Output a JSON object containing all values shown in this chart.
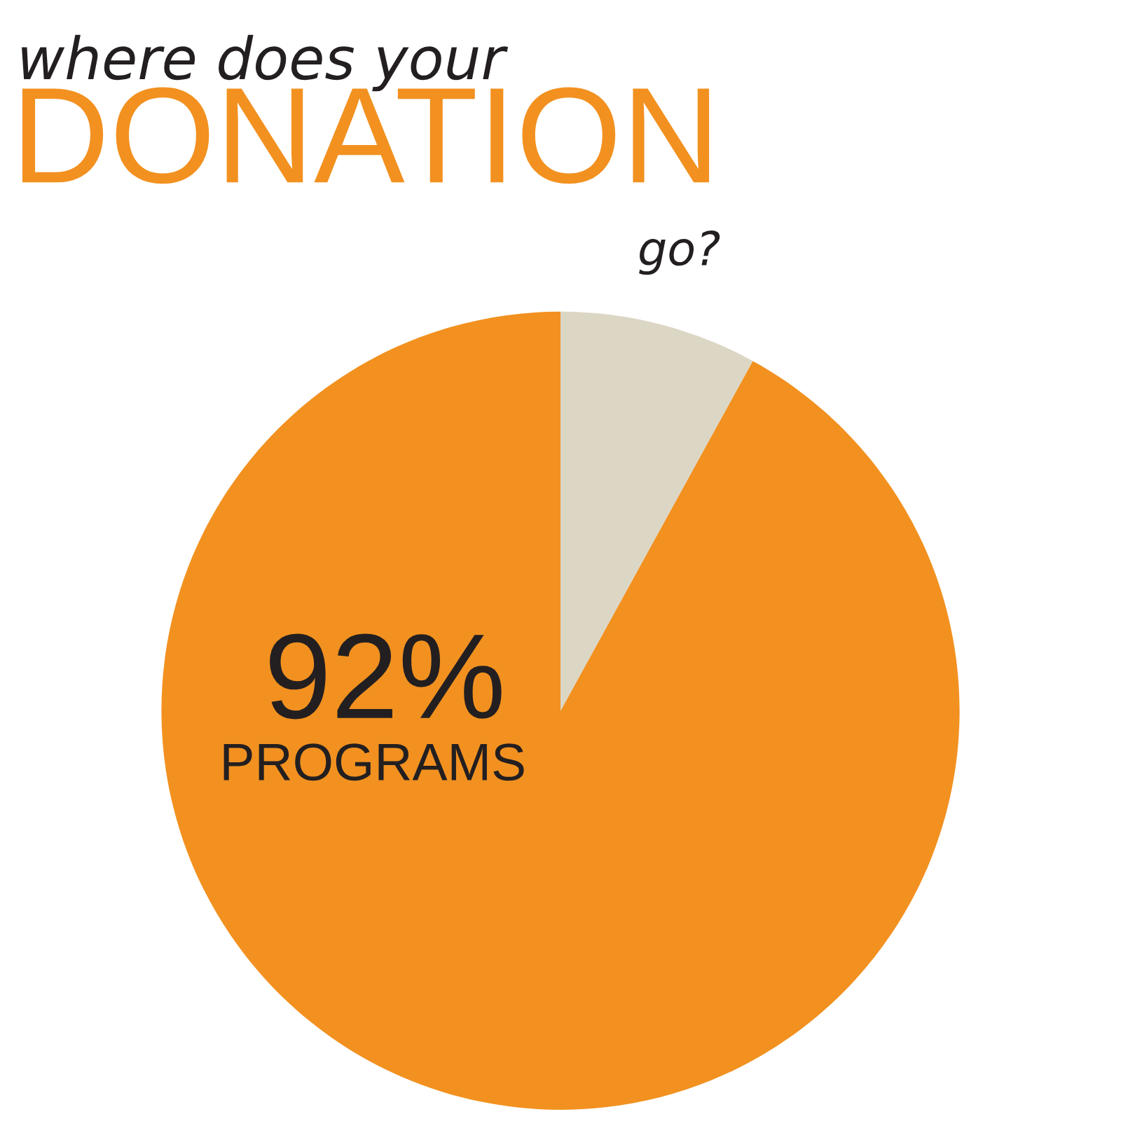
{
  "chart_data": {
    "type": "pie",
    "title": "where does your",
    "subtitle": "DONATION",
    "annotations": [
      "go?"
    ],
    "categories": [
      "PROGRAMS",
      null
    ],
    "values": [
      92,
      8
    ],
    "colors": [
      "#f29120",
      "#dcd6c5"
    ],
    "value_labels": [
      "92%",
      null
    ],
    "legend": false
  }
}
